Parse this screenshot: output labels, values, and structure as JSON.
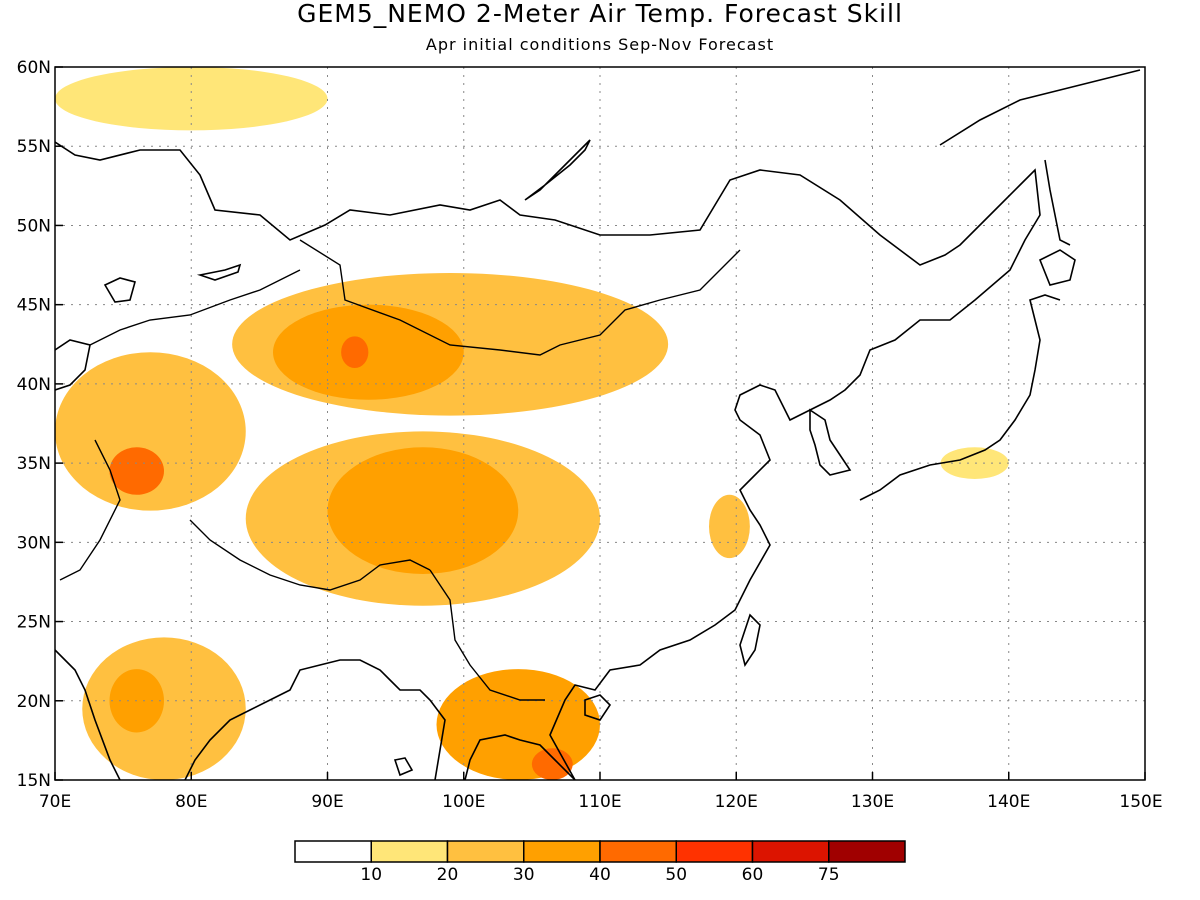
{
  "title": "GEM5_NEMO 2-Meter Air Temp. Forecast Skill",
  "subtitle": "Apr initial conditions  Sep-Nov Forecast",
  "map": {
    "lon_range": [
      70,
      150
    ],
    "lat_range": [
      15,
      60
    ],
    "x_ticks": [
      "70E",
      "80E",
      "90E",
      "100E",
      "110E",
      "120E",
      "130E",
      "140E",
      "150E"
    ],
    "y_ticks": [
      "15N",
      "20N",
      "25N",
      "30N",
      "35N",
      "40N",
      "45N",
      "50N",
      "55N",
      "60N"
    ],
    "grid": true
  },
  "colorbar": {
    "labels": [
      "10",
      "20",
      "30",
      "40",
      "50",
      "60",
      "75"
    ],
    "colors": [
      "#ffffff",
      "#ffe678",
      "#ffc040",
      "#ffa000",
      "#ff6a00",
      "#ff3200",
      "#dc1400",
      "#a00000"
    ]
  },
  "chart_data": {
    "type": "heatmap",
    "title": "GEM5_NEMO 2-Meter Air Temp. Forecast Skill",
    "subtitle": "Apr initial conditions  Sep-Nov Forecast",
    "x_range": [
      70,
      150
    ],
    "y_range": [
      15,
      60
    ],
    "levels": [
      10,
      20,
      30,
      40,
      50,
      60,
      75
    ],
    "regions": [
      {
        "lon": [
          70,
          90
        ],
        "lat": [
          56,
          60
        ],
        "level": 10
      },
      {
        "lon": [
          83,
          115
        ],
        "lat": [
          38,
          47
        ],
        "level": 20
      },
      {
        "lon": [
          86,
          100
        ],
        "lat": [
          39,
          45
        ],
        "level": 30
      },
      {
        "lon": [
          91,
          93
        ],
        "lat": [
          41,
          43
        ],
        "level": 40
      },
      {
        "lon": [
          70,
          84
        ],
        "lat": [
          32,
          42
        ],
        "level": 20
      },
      {
        "lon": [
          74,
          78
        ],
        "lat": [
          33,
          36
        ],
        "level": 40
      },
      {
        "lon": [
          84,
          110
        ],
        "lat": [
          26,
          37
        ],
        "level": 20
      },
      {
        "lon": [
          90,
          104
        ],
        "lat": [
          28,
          36
        ],
        "level": 30
      },
      {
        "lon": [
          98,
          110
        ],
        "lat": [
          15,
          22
        ],
        "level": 30
      },
      {
        "lon": [
          105,
          108
        ],
        "lat": [
          15,
          17
        ],
        "level": 40
      },
      {
        "lon": [
          72,
          84
        ],
        "lat": [
          15,
          24
        ],
        "level": 20
      },
      {
        "lon": [
          74,
          78
        ],
        "lat": [
          18,
          22
        ],
        "level": 30
      },
      {
        "lon": [
          118,
          121
        ],
        "lat": [
          29,
          33
        ],
        "level": 20
      },
      {
        "lon": [
          135,
          140
        ],
        "lat": [
          34,
          36
        ],
        "level": 10
      }
    ]
  }
}
